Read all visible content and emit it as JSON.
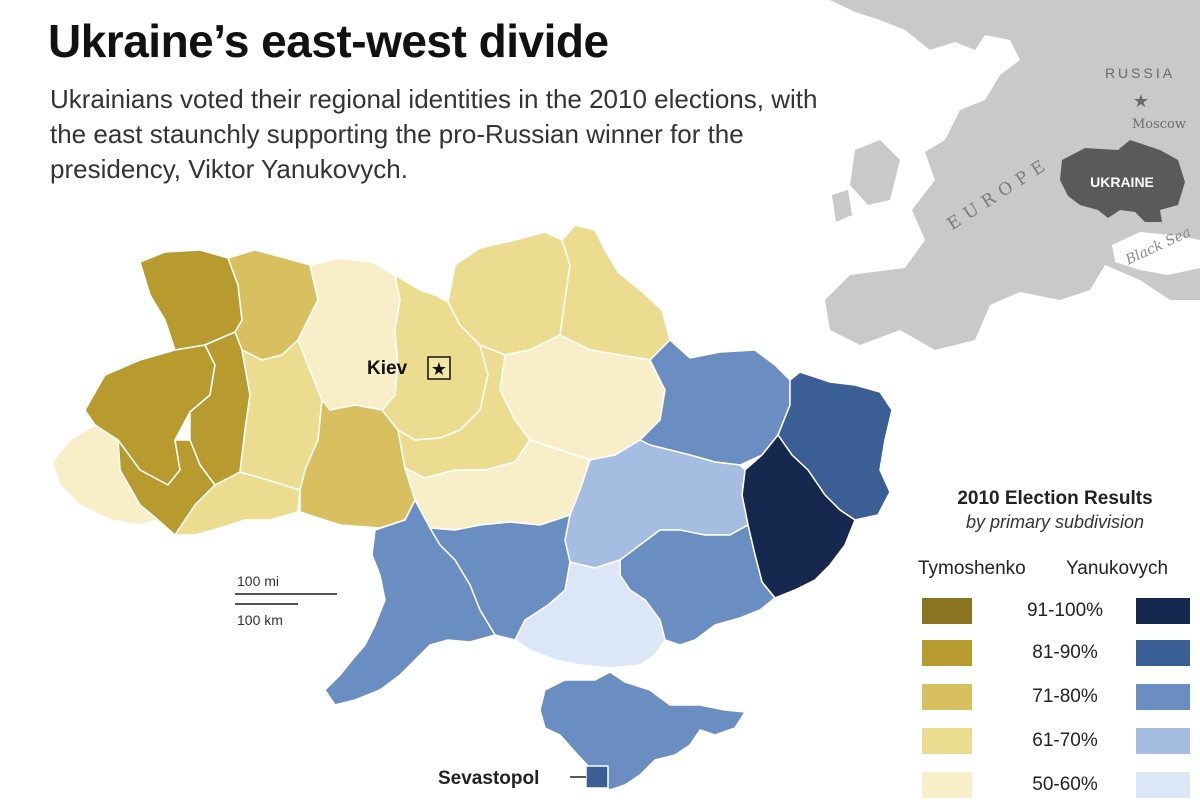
{
  "header": {
    "title": "Ukraine’s east-west divide",
    "subtitle": "Ukrainians voted their regional identities in the 2010 elections, with the east staunchly supporting the pro-Russian winner for the presidency, Viktor Yanukovych."
  },
  "inset": {
    "russia_label": "RUSSIA",
    "moscow_label": "Moscow",
    "europe_label": "EUROPE",
    "ukraine_label": "UKRAINE",
    "black_sea_label": "Black Sea",
    "land_color": "#c9c9c9",
    "ukraine_color": "#5a5a5a"
  },
  "map": {
    "kiev_label": "Kiev",
    "sevastopol_label": "Sevastopol",
    "scale_mi": "100 mi",
    "scale_km": "100 km",
    "regions": [
      {
        "id": "volyn",
        "candidate": "Tymoshenko",
        "bin": "81-90%"
      },
      {
        "id": "rivne",
        "candidate": "Tymoshenko",
        "bin": "71-80%"
      },
      {
        "id": "lviv",
        "candidate": "Tymoshenko",
        "bin": "81-90%"
      },
      {
        "id": "ternopil",
        "candidate": "Tymoshenko",
        "bin": "81-90%"
      },
      {
        "id": "ivano-frankivsk",
        "candidate": "Tymoshenko",
        "bin": "81-90%"
      },
      {
        "id": "zakarpattia",
        "candidate": "Tymoshenko",
        "bin": "50-60%"
      },
      {
        "id": "chernivtsi",
        "candidate": "Tymoshenko",
        "bin": "61-70%"
      },
      {
        "id": "khmelnytskyi",
        "candidate": "Tymoshenko",
        "bin": "61-70%"
      },
      {
        "id": "zhytomyr",
        "candidate": "Tymoshenko",
        "bin": "50-60%"
      },
      {
        "id": "vinnytsia",
        "candidate": "Tymoshenko",
        "bin": "71-80%"
      },
      {
        "id": "kiev-oblast",
        "candidate": "Tymoshenko",
        "bin": "61-70%"
      },
      {
        "id": "chernihiv",
        "candidate": "Tymoshenko",
        "bin": "61-70%"
      },
      {
        "id": "sumy",
        "candidate": "Tymoshenko",
        "bin": "61-70%"
      },
      {
        "id": "poltava",
        "candidate": "Tymoshenko",
        "bin": "50-60%"
      },
      {
        "id": "cherkasy",
        "candidate": "Tymoshenko",
        "bin": "61-70%"
      },
      {
        "id": "kirovohrad",
        "candidate": "Tymoshenko",
        "bin": "50-60%"
      },
      {
        "id": "kharkiv",
        "candidate": "Yanukovych",
        "bin": "71-80%"
      },
      {
        "id": "luhansk",
        "candidate": "Yanukovych",
        "bin": "81-90%"
      },
      {
        "id": "donetsk",
        "candidate": "Yanukovych",
        "bin": "91-100%"
      },
      {
        "id": "dnipropetrovsk",
        "candidate": "Yanukovych",
        "bin": "61-70%"
      },
      {
        "id": "zaporizhzhia",
        "candidate": "Yanukovych",
        "bin": "71-80%"
      },
      {
        "id": "kherson",
        "candidate": "Yanukovych",
        "bin": "50-60%"
      },
      {
        "id": "mykolaiv",
        "candidate": "Yanukovych",
        "bin": "71-80%"
      },
      {
        "id": "odesa",
        "candidate": "Yanukovych",
        "bin": "71-80%"
      },
      {
        "id": "crimea",
        "candidate": "Yanukovych",
        "bin": "71-80%"
      },
      {
        "id": "sevastopol",
        "candidate": "Yanukovych",
        "bin": "81-90%"
      }
    ]
  },
  "legend": {
    "title": "2010 Election Results",
    "subtitle": "by primary subdivision",
    "tymoshenko_label": "Tymoshenko",
    "yanukovych_label": "Yanukovych",
    "rows": [
      {
        "range": "91-100%",
        "tymoshenko_color": "#8a7420",
        "yanukovych_color": "#16284e"
      },
      {
        "range": "81-90%",
        "tymoshenko_color": "#b89b2e",
        "yanukovych_color": "#3b5f95"
      },
      {
        "range": "71-80%",
        "tymoshenko_color": "#d8bf5f",
        "yanukovych_color": "#6b8ec2"
      },
      {
        "range": "61-70%",
        "tymoshenko_color": "#ecdc8f",
        "yanukovych_color": "#a5bde0"
      },
      {
        "range": "50-60%",
        "tymoshenko_color": "#f8efc8",
        "yanukovych_color": "#dbe7f6"
      }
    ]
  }
}
